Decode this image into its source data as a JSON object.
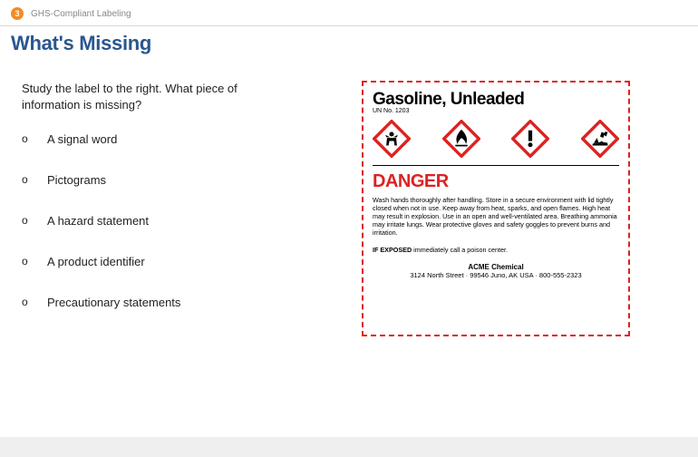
{
  "header": {
    "section_number": "3",
    "section_label": "GHS-Compliant Labeling"
  },
  "title": "What's Missing",
  "prompt": "Study the label to the right. What piece of information is missing?",
  "options": [
    {
      "marker": "o",
      "text": "A signal word"
    },
    {
      "marker": "o",
      "text": "Pictograms"
    },
    {
      "marker": "o",
      "text": "A hazard statement"
    },
    {
      "marker": "o",
      "text": "A product identifier"
    },
    {
      "marker": "o",
      "text": "Precautionary statements"
    }
  ],
  "label": {
    "product_name": "Gasoline, Unleaded",
    "un_no": "UN No. 1203",
    "pictograms": [
      "health-hazard",
      "flame",
      "exclamation-mark",
      "environment"
    ],
    "signal_word": "DANGER",
    "signal_color": "#d22",
    "border_color": "#d22",
    "picto_frame_color": "#d22",
    "precaution_text": "Wash hands thoroughly after handling. Store in a secure environment with lid tightly closed when not in use. Keep away from heat, sparks, and open flames. High heat may result in explosion. Use in an open and well-ventilated area. Breathing ammonia may irritate lungs.\nWear protective gloves and safety goggles to prevent burns and irritation.",
    "exposed_label": "IF EXPOSED",
    "exposed_text": " immediately call a poison center.",
    "supplier_name": "ACME Chemical",
    "supplier_address": "3124 North Street · 99546 Juno, AK USA · 800-555-2323"
  }
}
